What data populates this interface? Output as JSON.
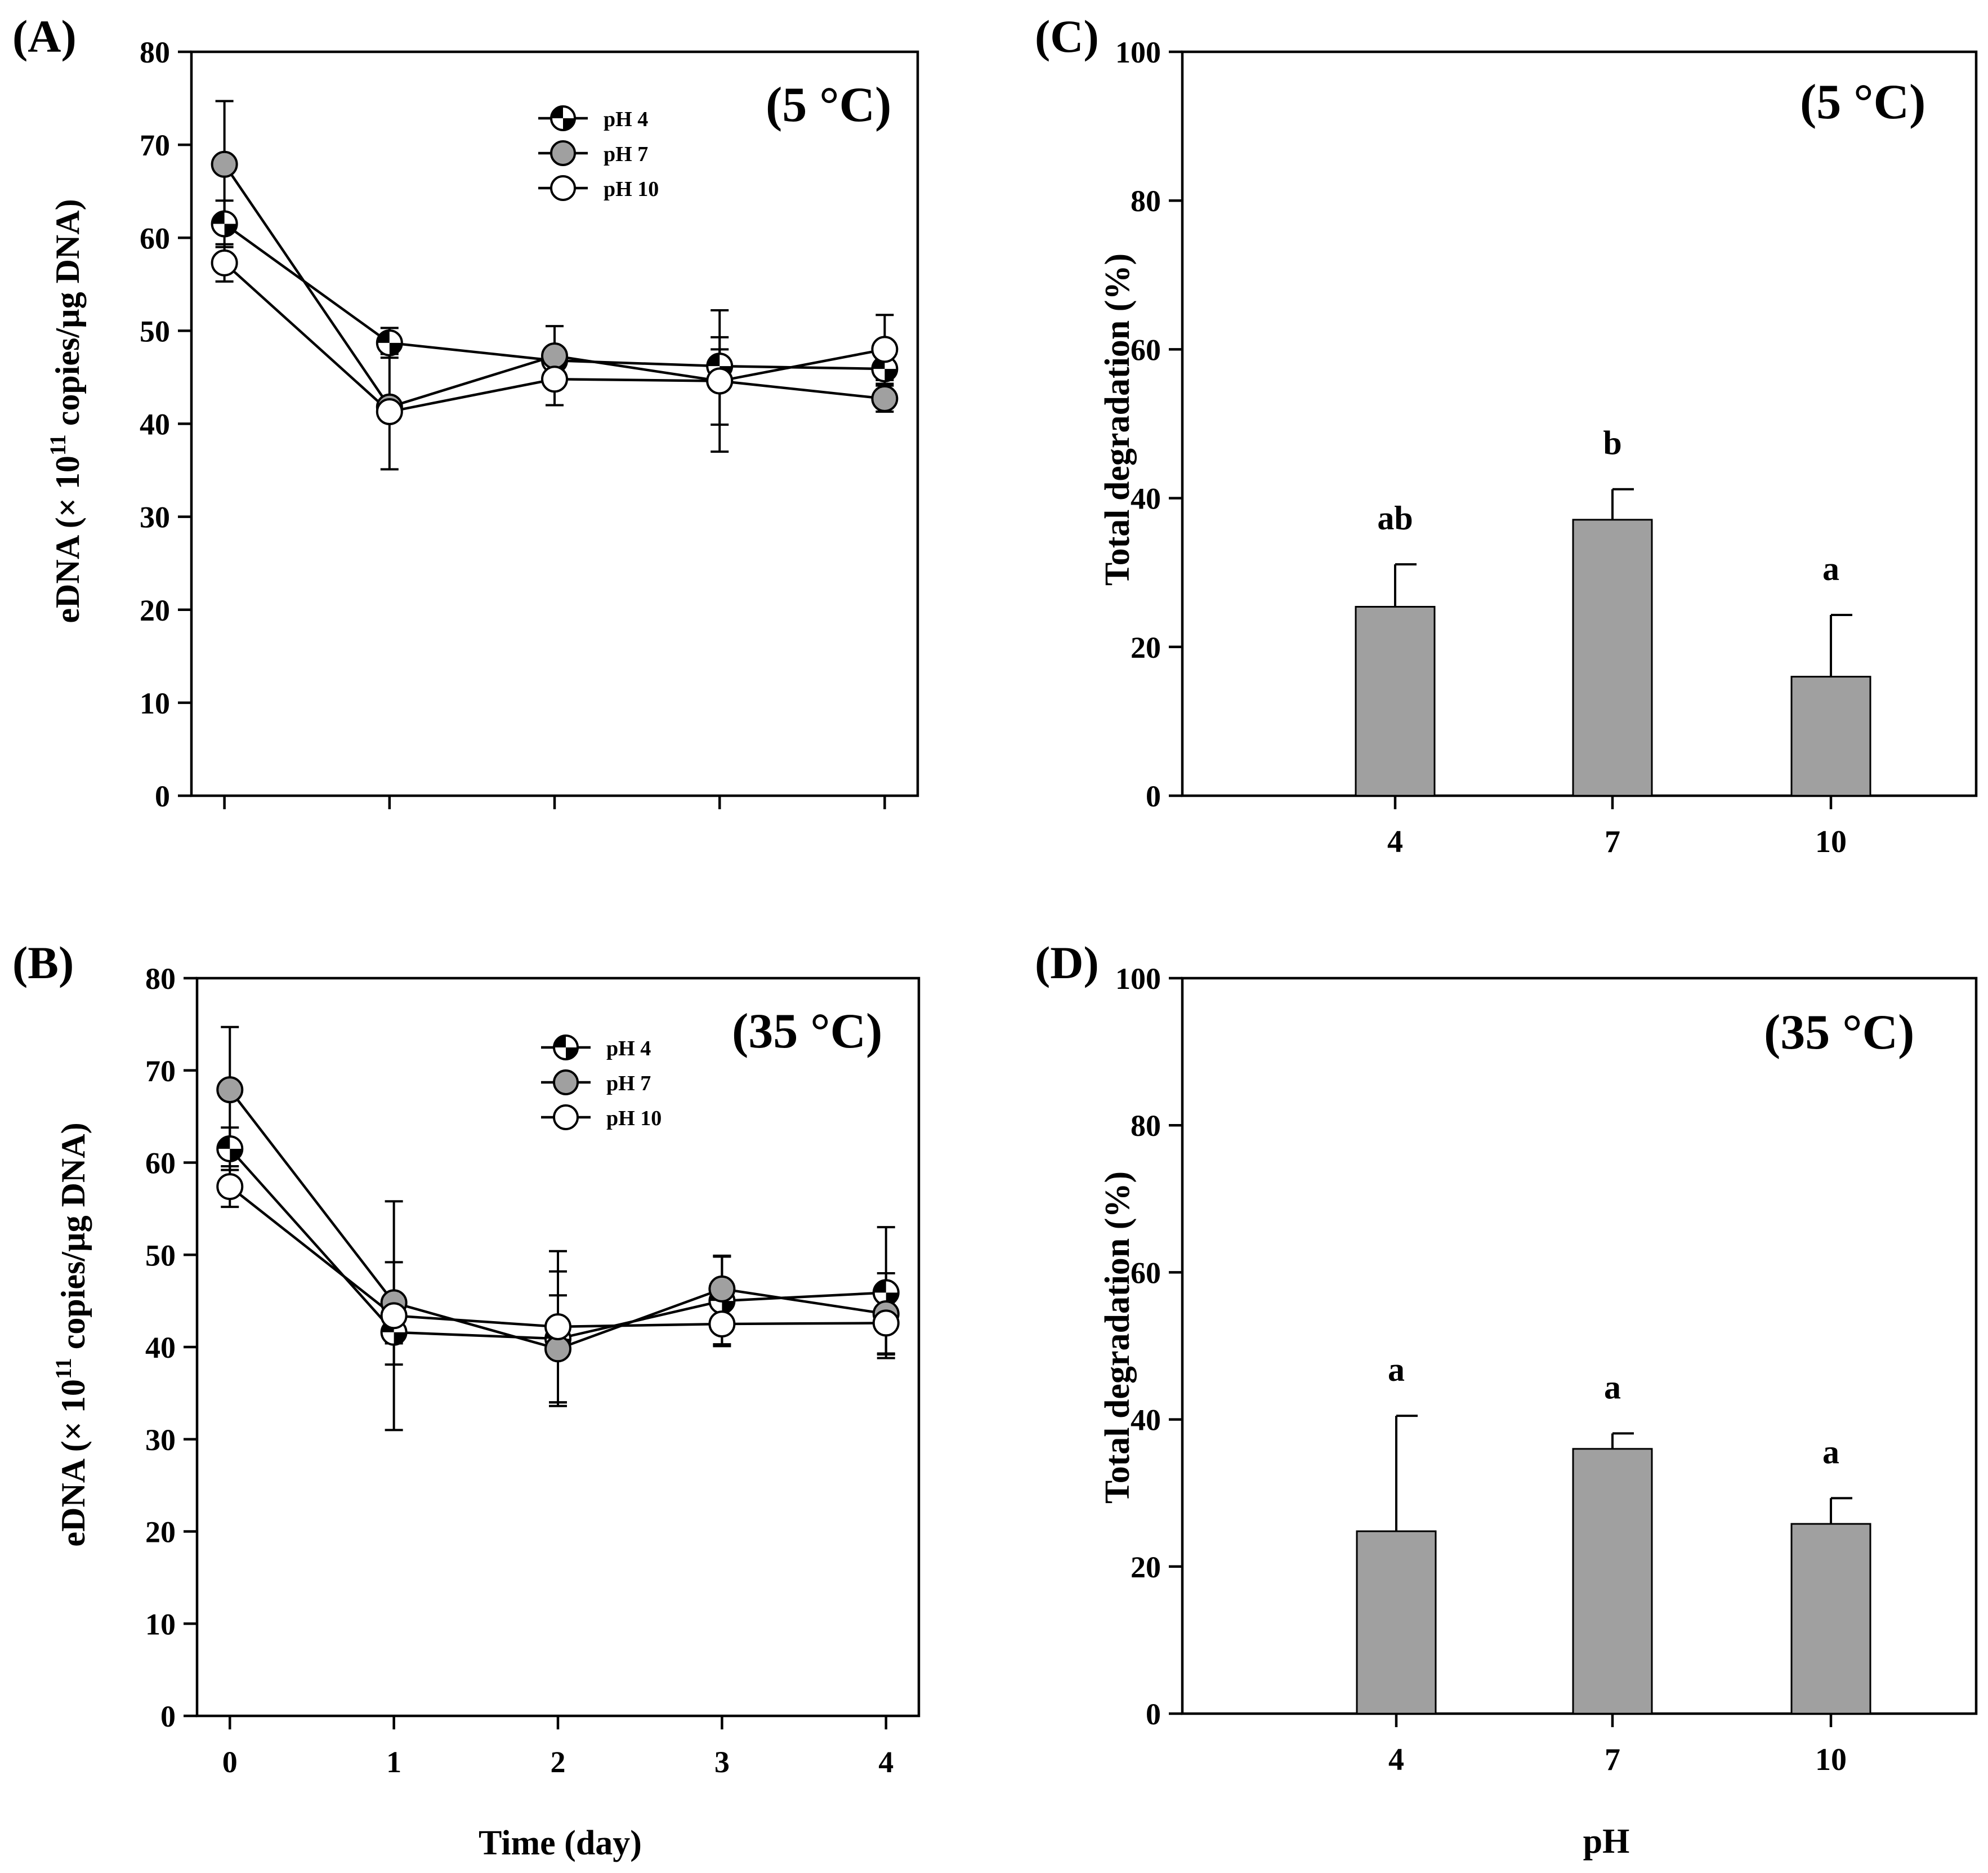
{
  "chart_data": [
    {
      "type": "line",
      "panel_label": "(A)",
      "annotation": "(5 °C)",
      "xlabel": "",
      "ylabel": "eDNA (× 10",
      "ylabel_superscript": "11",
      "ylabel_suffix": " copies/µg DNA)",
      "x": [
        0,
        1,
        2,
        3,
        4
      ],
      "xlim": [
        -0.2,
        4.2
      ],
      "ylim": [
        0,
        80
      ],
      "yticks": [
        0,
        10,
        20,
        30,
        40,
        50,
        60,
        70,
        80
      ],
      "legend_position": "top-right",
      "series": [
        {
          "name": "pH 4",
          "marker": "half-filled",
          "values": [
            61.5,
            48.7,
            46.8,
            46.2,
            45.9
          ],
          "errors": [
            2.5,
            1.6,
            1.0,
            1.8,
            1.2
          ]
        },
        {
          "name": "pH 7",
          "marker": "gray",
          "values": [
            67.9,
            41.8,
            47.3,
            44.6,
            42.7
          ],
          "errors": [
            6.8,
            0.6,
            3.2,
            4.7,
            1.4
          ]
        },
        {
          "name": "pH 10",
          "marker": "open",
          "values": [
            57.3,
            41.3,
            44.8,
            44.6,
            48.0
          ],
          "errors": [
            2.0,
            6.2,
            2.8,
            7.6,
            3.7
          ]
        }
      ]
    },
    {
      "type": "line",
      "panel_label": "(B)",
      "annotation": "(35 °C)",
      "xlabel": "Time (day)",
      "ylabel": "eDNA (× 10",
      "ylabel_superscript": "11",
      "ylabel_suffix": " copies/µg DNA)",
      "x": [
        0,
        1,
        2,
        3,
        4
      ],
      "xlim": [
        -0.2,
        4.2
      ],
      "ylim": [
        0,
        80
      ],
      "yticks": [
        0,
        10,
        20,
        30,
        40,
        50,
        60,
        70,
        80
      ],
      "legend_position": "top-right",
      "series": [
        {
          "name": "pH 4",
          "marker": "half-filled",
          "values": [
            61.5,
            41.6,
            40.9,
            45.0,
            45.9
          ],
          "errors": [
            2.3,
            3.5,
            7.3,
            4.9,
            7.1
          ]
        },
        {
          "name": "pH 7",
          "marker": "gray",
          "values": [
            67.9,
            44.8,
            39.8,
            46.3,
            43.6
          ],
          "errors": [
            6.8,
            4.4,
            5.8,
            3.5,
            4.4
          ]
        },
        {
          "name": "pH 10",
          "marker": "open",
          "values": [
            57.4,
            43.4,
            42.2,
            42.5,
            42.6
          ],
          "errors": [
            2.2,
            12.4,
            8.2,
            2.2,
            3.3
          ]
        }
      ]
    },
    {
      "type": "bar",
      "panel_label": "(C)",
      "annotation": "(5 °C)",
      "xlabel": "",
      "ylabel": "Total degradation (%)",
      "categories": [
        "4",
        "7",
        "10"
      ],
      "values": [
        25.4,
        37.1,
        16.0
      ],
      "errors": [
        5.7,
        4.1,
        8.3
      ],
      "significance_labels": [
        "ab",
        "b",
        "a"
      ],
      "ylim": [
        0,
        100
      ],
      "yticks": [
        0,
        20,
        40,
        60,
        80,
        100
      ]
    },
    {
      "type": "bar",
      "panel_label": "(D)",
      "annotation": "(35 °C)",
      "xlabel": "pH",
      "ylabel": "Total degradation (%)",
      "categories": [
        "4",
        "7",
        "10"
      ],
      "values": [
        24.8,
        36.0,
        25.8
      ],
      "errors": [
        15.7,
        2.1,
        3.5
      ],
      "significance_labels": [
        "a",
        "a",
        "a"
      ],
      "ylim": [
        0,
        100
      ],
      "yticks": [
        0,
        20,
        40,
        60,
        80,
        100
      ]
    }
  ],
  "colors": {
    "bar_fill": "#a0a0a0",
    "marker_gray": "#a0a0a0",
    "marker_open": "#ffffff",
    "marker_dark": "#000000"
  }
}
